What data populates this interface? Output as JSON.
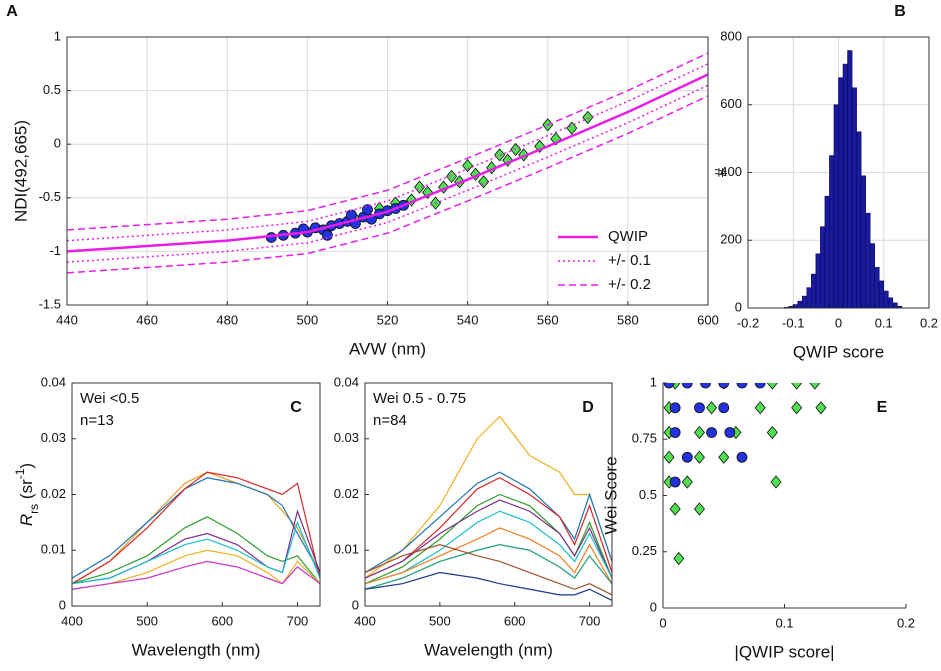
{
  "chart_data": [
    {
      "type": "line",
      "label": "A",
      "xlabel": "AVW (nm)",
      "ylabel": "NDI(492,665)",
      "xlim": [
        440,
        600
      ],
      "xticks": [
        440,
        460,
        480,
        500,
        520,
        540,
        560,
        580,
        600
      ],
      "ylim": [
        -1.5,
        1
      ],
      "yticks": [
        -1.5,
        -1,
        -0.5,
        0,
        0.5,
        1
      ],
      "grid": true,
      "legend": "lower right",
      "x": [
        440,
        460,
        480,
        500,
        520,
        540,
        560,
        580,
        600
      ],
      "series": [
        {
          "color": "#4ee04e",
          "marker": "diamond",
          "x": [
            505,
            512,
            518,
            522,
            526,
            530,
            534,
            538,
            542,
            546,
            550,
            554,
            558,
            562,
            566,
            570,
            528,
            536,
            544,
            552,
            560,
            548,
            532,
            540
          ],
          "values": [
            -0.8,
            -0.7,
            -0.6,
            -0.55,
            -0.52,
            -0.45,
            -0.4,
            -0.35,
            -0.28,
            -0.22,
            -0.15,
            -0.1,
            -0.02,
            0.05,
            0.15,
            0.25,
            -0.4,
            -0.3,
            -0.35,
            -0.05,
            0.18,
            -0.1,
            -0.55,
            -0.2
          ]
        },
        {
          "color": "#2233dd",
          "marker": "circle",
          "x": [
            491,
            494,
            497,
            500,
            502,
            504,
            506,
            508,
            510,
            512,
            514,
            516,
            518,
            520,
            522,
            524,
            505,
            511,
            499,
            515
          ],
          "values": [
            -0.87,
            -0.85,
            -0.83,
            -0.82,
            -0.78,
            -0.8,
            -0.76,
            -0.74,
            -0.72,
            -0.74,
            -0.68,
            -0.7,
            -0.65,
            -0.62,
            -0.6,
            -0.57,
            -0.85,
            -0.66,
            -0.79,
            -0.61
          ]
        },
        {
          "name": "QWIP",
          "color": "#e81ee8",
          "style": "solid",
          "values": [
            -1.0,
            -0.95,
            -0.9,
            -0.82,
            -0.63,
            -0.33,
            -0.02,
            0.3,
            0.65
          ]
        },
        {
          "name": "+/- 0.1",
          "color": "#e81ee8",
          "style": "dotted",
          "values": [
            -0.9,
            -0.85,
            -0.8,
            -0.72,
            -0.53,
            -0.23,
            0.08,
            0.4,
            0.75
          ]
        },
        {
          "color": "#e81ee8",
          "style": "dotted",
          "values": [
            -1.1,
            -1.05,
            -1.0,
            -0.92,
            -0.73,
            -0.43,
            -0.12,
            0.2,
            0.55
          ]
        },
        {
          "name": "+/- 0.2",
          "color": "#e81ee8",
          "style": "dashed",
          "values": [
            -0.8,
            -0.75,
            -0.7,
            -0.62,
            -0.43,
            -0.13,
            0.18,
            0.5,
            0.85
          ]
        },
        {
          "color": "#e81ee8",
          "style": "dashed",
          "values": [
            -1.2,
            -1.15,
            -1.1,
            -1.02,
            -0.83,
            -0.53,
            -0.22,
            0.1,
            0.45
          ]
        }
      ]
    },
    {
      "type": "histogram",
      "label": "B",
      "xlabel": "QWIP score",
      "ylabel": "#",
      "xlim": [
        -0.2,
        0.2
      ],
      "xticks": [
        -0.2,
        -0.1,
        0,
        0.1,
        0.2
      ],
      "ylim": [
        0,
        800
      ],
      "yticks": [
        0,
        200,
        400,
        600,
        800
      ],
      "grid": true,
      "color": "#1a1aa0",
      "bins": [
        -0.12,
        -0.11,
        -0.1,
        -0.09,
        -0.08,
        -0.07,
        -0.06,
        -0.05,
        -0.04,
        -0.03,
        -0.02,
        -0.01,
        0,
        0.01,
        0.02,
        0.03,
        0.04,
        0.05,
        0.06,
        0.07,
        0.08,
        0.09,
        0.1,
        0.11,
        0.12,
        0.13,
        0.14
      ],
      "counts": [
        2,
        5,
        10,
        20,
        35,
        60,
        100,
        160,
        240,
        330,
        450,
        600,
        680,
        720,
        760,
        650,
        520,
        390,
        280,
        190,
        120,
        80,
        50,
        30,
        15,
        5
      ]
    },
    {
      "type": "line",
      "label": "C",
      "xlabel": "Wavelength (nm)",
      "ylabel": [
        "R",
        "rs",
        " (sr",
        "-1",
        ")"
      ],
      "annotations": [
        "Wei <0.5",
        "n=13"
      ],
      "xlim": [
        400,
        730
      ],
      "xticks": [
        400,
        500,
        600,
        700
      ],
      "ylim": [
        0,
        0.04
      ],
      "yticks": [
        0,
        0.01,
        0.02,
        0.03,
        0.04
      ],
      "grid": false,
      "x": [
        400,
        450,
        500,
        550,
        580,
        620,
        660,
        680,
        700,
        730
      ],
      "series": [
        {
          "color": "#f0a020",
          "values": [
            0.004,
            0.008,
            0.015,
            0.022,
            0.024,
            0.022,
            0.02,
            0.017,
            0.014,
            0.006
          ]
        },
        {
          "color": "#1f77b4",
          "values": [
            0.005,
            0.009,
            0.015,
            0.021,
            0.023,
            0.022,
            0.02,
            0.018,
            0.013,
            0.006
          ]
        },
        {
          "color": "#d62728",
          "values": [
            0.004,
            0.008,
            0.014,
            0.021,
            0.024,
            0.023,
            0.021,
            0.02,
            0.022,
            0.005
          ]
        },
        {
          "color": "#2ca02c",
          "values": [
            0.004,
            0.006,
            0.009,
            0.014,
            0.016,
            0.013,
            0.009,
            0.008,
            0.009,
            0.004
          ]
        },
        {
          "color": "#7e2f8e",
          "values": [
            0.004,
            0.005,
            0.008,
            0.012,
            0.013,
            0.011,
            0.007,
            0.006,
            0.017,
            0.006
          ]
        },
        {
          "color": "#17becf",
          "values": [
            0.004,
            0.005,
            0.008,
            0.011,
            0.012,
            0.01,
            0.007,
            0.006,
            0.015,
            0.005
          ]
        },
        {
          "color": "#edb120",
          "values": [
            0.003,
            0.004,
            0.006,
            0.009,
            0.01,
            0.009,
            0.006,
            0.004,
            0.008,
            0.004
          ]
        },
        {
          "color": "#cc33cc",
          "values": [
            0.003,
            0.004,
            0.005,
            0.007,
            0.008,
            0.007,
            0.005,
            0.004,
            0.007,
            0.004
          ]
        }
      ]
    },
    {
      "type": "line",
      "label": "D",
      "xlabel": "Wavelength (nm)",
      "annotations": [
        "Wei 0.5 - 0.75",
        "n=84"
      ],
      "xlim": [
        400,
        730
      ],
      "xticks": [
        400,
        500,
        600,
        700
      ],
      "ylim": [
        0,
        0.04
      ],
      "yticks": [
        0,
        0.01,
        0.02,
        0.03,
        0.04
      ],
      "grid": false,
      "x": [
        400,
        450,
        500,
        550,
        580,
        620,
        660,
        680,
        700,
        730
      ],
      "series": [
        {
          "color": "#edb120",
          "values": [
            0.005,
            0.01,
            0.018,
            0.03,
            0.034,
            0.027,
            0.024,
            0.02,
            0.02,
            0.008
          ]
        },
        {
          "color": "#1f77b4",
          "values": [
            0.006,
            0.01,
            0.016,
            0.022,
            0.024,
            0.021,
            0.016,
            0.012,
            0.02,
            0.008
          ]
        },
        {
          "color": "#d62728",
          "values": [
            0.005,
            0.008,
            0.014,
            0.021,
            0.023,
            0.02,
            0.016,
            0.011,
            0.018,
            0.006
          ]
        },
        {
          "color": "#2ca02c",
          "values": [
            0.004,
            0.007,
            0.012,
            0.018,
            0.02,
            0.018,
            0.013,
            0.009,
            0.015,
            0.005
          ]
        },
        {
          "color": "#7e2f8e",
          "values": [
            0.005,
            0.008,
            0.013,
            0.017,
            0.019,
            0.017,
            0.013,
            0.009,
            0.014,
            0.005
          ]
        },
        {
          "color": "#17becf",
          "values": [
            0.004,
            0.006,
            0.01,
            0.015,
            0.017,
            0.015,
            0.011,
            0.008,
            0.013,
            0.005
          ]
        },
        {
          "color": "#f07f20",
          "values": [
            0.004,
            0.006,
            0.009,
            0.012,
            0.014,
            0.012,
            0.009,
            0.006,
            0.011,
            0.004
          ]
        },
        {
          "color": "#1b9e77",
          "values": [
            0.003,
            0.005,
            0.008,
            0.01,
            0.011,
            0.01,
            0.007,
            0.005,
            0.009,
            0.004
          ]
        },
        {
          "color": "#a0522d",
          "values": [
            0.006,
            0.009,
            0.011,
            0.009,
            0.008,
            0.006,
            0.004,
            0.003,
            0.004,
            0.002
          ]
        },
        {
          "color": "#1a3a8a",
          "values": [
            0.003,
            0.004,
            0.006,
            0.005,
            0.004,
            0.003,
            0.002,
            0.002,
            0.003,
            0.001
          ]
        }
      ]
    },
    {
      "type": "scatter",
      "label": "E",
      "xlabel": "|QWIP score|",
      "ylabel": "Wei Score",
      "xlim": [
        0,
        0.2
      ],
      "xticks": [
        0,
        0.1,
        0.2
      ],
      "ylim": [
        0,
        1
      ],
      "yticks": [
        0,
        0.25,
        0.5,
        0.75,
        1
      ],
      "grid": false,
      "series": [
        {
          "color": "#4ee04e",
          "marker": "diamond",
          "x": [
            0.01,
            0.05,
            0.09,
            0.11,
            0.125,
            0.005,
            0.04,
            0.08,
            0.11,
            0.13,
            0.005,
            0.03,
            0.06,
            0.09,
            0.005,
            0.03,
            0.05,
            0.005,
            0.02,
            0.093,
            0.01,
            0.03,
            0.013
          ],
          "values": [
            1,
            1,
            1,
            1,
            1,
            0.89,
            0.89,
            0.89,
            0.89,
            0.89,
            0.78,
            0.78,
            0.78,
            0.78,
            0.67,
            0.67,
            0.67,
            0.56,
            0.56,
            0.56,
            0.44,
            0.44,
            0.22
          ]
        },
        {
          "color": "#2233dd",
          "marker": "circle",
          "x": [
            0.005,
            0.02,
            0.035,
            0.05,
            0.065,
            0.08,
            0.01,
            0.03,
            0.05,
            0.01,
            0.04,
            0.055,
            0.02,
            0.065,
            0.01
          ],
          "values": [
            1,
            1,
            1,
            1,
            1,
            1,
            0.89,
            0.89,
            0.89,
            0.78,
            0.78,
            0.78,
            0.67,
            0.67,
            0.56
          ]
        }
      ]
    }
  ]
}
